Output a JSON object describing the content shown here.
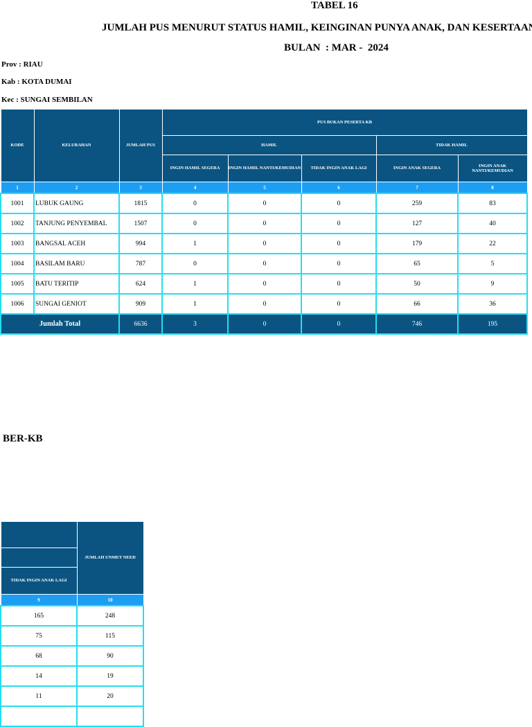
{
  "title": {
    "table_no": "TABEL 16",
    "heading": "JUMLAH PUS MENURUT STATUS HAMIL, KEINGINAN PUNYA ANAK, DAN KESERTAAN",
    "period": "BULAN  : MAR -  2024"
  },
  "location": {
    "prov_label": "Prov :",
    "prov_value": "RIAU",
    "kab_label": "Kab  :",
    "kab_value": "KOTA DUMAI",
    "kec_label": "Kec  :",
    "kec_value": "SUNGAI SEMBILAN"
  },
  "table1": {
    "headers": {
      "kode": "KODE",
      "kelurahan": "KELURAHAN",
      "jumlah_pus": "JUMLAH PUS",
      "pus_bukan": "PUS BUKAN PESERTA KB",
      "hamil": "HAMIL",
      "tidak_hamil": "TIDAK HAMIL",
      "ingin_hamil_segera": "INGIN HAMIL SEGERA",
      "ingin_hamil_nanti": "INGIN HAMIL NANTI/KEMUDIAN",
      "tidak_ingin_anak_lagi": "TIDAK INGIN ANAK LAGI",
      "ingin_anak_segera": "INGIN ANAK SEGERA",
      "ingin_anak_nanti": "INGIN ANAK NANTI/KEMUDIAN"
    },
    "col_numbers": [
      "1",
      "2",
      "3",
      "4",
      "5",
      "6",
      "7",
      "8"
    ],
    "rows": [
      [
        "1001",
        "LUBUK GAUNG",
        "1815",
        "0",
        "0",
        "0",
        "259",
        "83"
      ],
      [
        "1002",
        "TANJUNG PENYEMBAL",
        "1507",
        "0",
        "0",
        "0",
        "127",
        "40"
      ],
      [
        "1003",
        "BANGSAL ACEH",
        "994",
        "1",
        "0",
        "0",
        "179",
        "22"
      ],
      [
        "1004",
        "BASILAM BARU",
        "787",
        "0",
        "0",
        "0",
        "65",
        "5"
      ],
      [
        "1005",
        "BATU TERITIP",
        "624",
        "1",
        "0",
        "0",
        "50",
        "9"
      ],
      [
        "1006",
        "SUNGAI GENIOT",
        "909",
        "1",
        "0",
        "0",
        "66",
        "36"
      ]
    ],
    "total": {
      "label": "Jumlah Total",
      "values": [
        "6636",
        "3",
        "0",
        "0",
        "746",
        "195"
      ]
    }
  },
  "section2": {
    "heading": "BER-KB"
  },
  "table2": {
    "headers": {
      "tidak_ingin_anak_lagi": "TIDAK INGIN ANAK LAGI",
      "jumlah_unmet_need": "JUMLAH UNMET NEED"
    },
    "col_numbers": [
      "9",
      "10"
    ],
    "rows": [
      [
        "165",
        "248"
      ],
      [
        "75",
        "115"
      ],
      [
        "68",
        "90"
      ],
      [
        "14",
        "19"
      ],
      [
        "11",
        "20"
      ],
      [
        "",
        ""
      ]
    ]
  }
}
